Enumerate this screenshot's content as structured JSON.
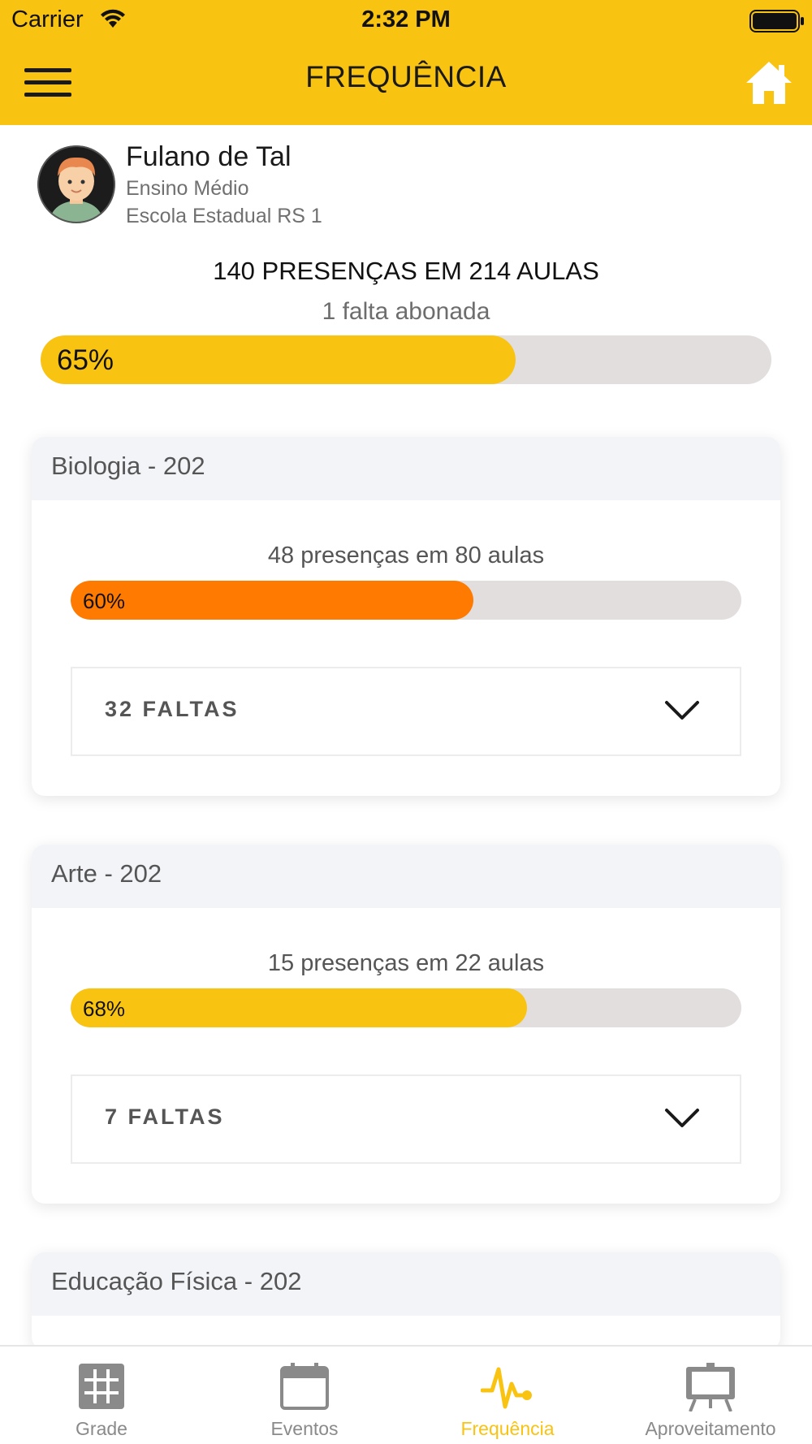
{
  "status_bar": {
    "carrier": "Carrier",
    "time": "2:32 PM"
  },
  "header": {
    "title": "FREQUÊNCIA",
    "menu_icon": "hamburger-icon",
    "home_icon": "home-icon"
  },
  "colors": {
    "brand": "#f9c312",
    "warning": "#ff7a00",
    "track": "#e2dedd"
  },
  "student": {
    "name": "Fulano de Tal",
    "level": "Ensino Médio",
    "school": "Escola Estadual RS 1"
  },
  "summary": {
    "title": "140 PRESENÇAS EM 214 AULAS",
    "excused": "1 falta abonada",
    "percent_label": "65%",
    "percent": 65
  },
  "subjects": [
    {
      "title": "Biologia - 202",
      "attendance": "48 presenças em 80 aulas",
      "percent_label": "60%",
      "percent": 60,
      "bar_color": "#ff7a00",
      "absences": "32 FALTAS"
    },
    {
      "title": "Arte - 202",
      "attendance": "15 presenças em 22 aulas",
      "percent_label": "68%",
      "percent": 68,
      "bar_color": "#f9c312",
      "absences": "7 FALTAS"
    },
    {
      "title": "Educação Física - 202"
    }
  ],
  "tabs": [
    {
      "label": "Grade",
      "icon": "grid-icon",
      "active": false
    },
    {
      "label": "Eventos",
      "icon": "calendar-icon",
      "active": false
    },
    {
      "label": "Frequência",
      "icon": "pulse-icon",
      "active": true
    },
    {
      "label": "Aproveitamento",
      "icon": "board-icon",
      "active": false
    }
  ]
}
